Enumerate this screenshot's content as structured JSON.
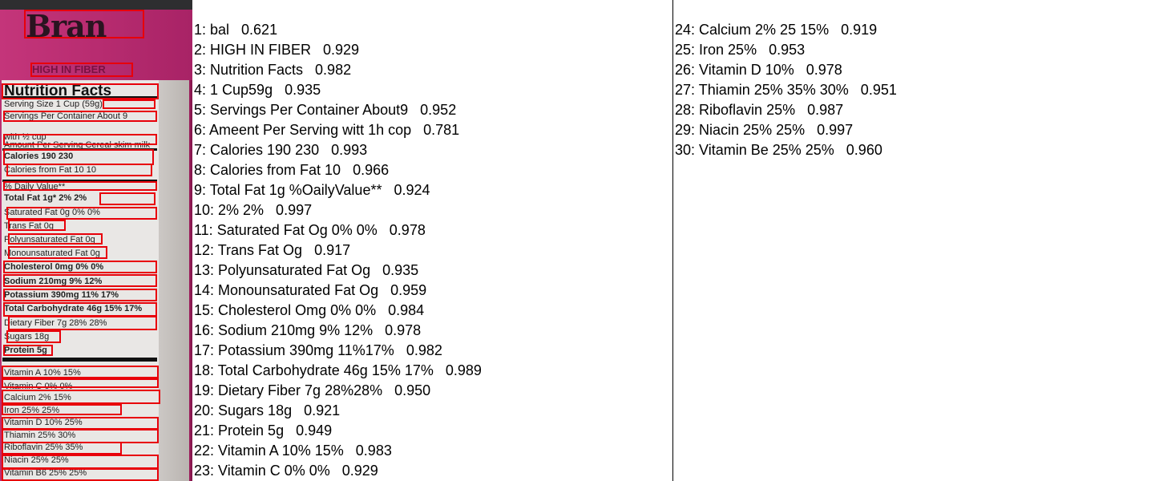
{
  "results_left": [
    "1: bal   0.621",
    "2: HIGH IN FIBER   0.929",
    "3: Nutrition Facts   0.982",
    "4: 1 Cup59g   0.935",
    "5: Servings Per Container About9   0.952",
    "6: Ameent Per Serving witt 1h cop   0.781",
    "7: Calories 190 230   0.993",
    "8: Calories from Fat 10   0.966",
    "9: Total Fat 1g %OailyValue**   0.924",
    "10: 2% 2%   0.997",
    "11: Saturated Fat Og 0% 0%   0.978",
    "12: Trans Fat Og   0.917",
    "13: Polyunsaturated Fat Og   0.935",
    "14: Monounsaturated Fat Og   0.959",
    "15: Cholesterol Omg 0% 0%   0.984",
    "16: Sodium 210mg 9% 12%   0.978",
    "17: Potassium 390mg 11%17%   0.982",
    "18: Total Carbohydrate 46g 15% 17%   0.989",
    "19: Dietary Fiber 7g 28%28%   0.950",
    "20: Sugars 18g   0.921",
    "21: Protein 5g   0.949",
    "22: Vitamin A 10% 15%   0.983",
    "23: Vitamin C 0% 0%   0.929"
  ],
  "results_right": [
    "24: Calcium 2% 25 15%   0.919",
    "25: Iron 25%   0.953",
    "26: Vitamin D 10%   0.978",
    "27: Thiamin 25% 35% 30%   0.951",
    "28: Riboflavin 25%   0.987",
    "29: Niacin 25% 25%   0.997",
    "30: Vitamin Be 25% 25%   0.960"
  ],
  "label_photo": {
    "brand": "Bran",
    "tagline": "HIGH IN FIBER",
    "panel_title": "Nutrition Facts",
    "rows": [
      "Serving Size          1 Cup (59g)",
      "Servings Per Container    About 9",
      "                           with ½ cup",
      "Amount Per Serving   Cereal  skim milk",
      "Calories              190     230",
      "  Calories from Fat    10      10",
      "                     % Daily Value**",
      "Total Fat 1g*          2%      2%",
      "  Saturated Fat 0g     0%      0%",
      "  Trans Fat 0g",
      "  Polyunsaturated Fat 0g",
      "  Monounsaturated Fat 0g",
      "Cholesterol 0mg        0%      0%",
      "Sodium 210mg           9%     12%",
      "Potassium 390mg       11%     17%",
      "Total Carbohydrate 46g 15%    17%",
      "  Dietary Fiber 7g    28%     28%",
      "  Sugars 18g",
      "Protein 5g",
      "",
      "Vitamin A             10%     15%",
      "Vitamin C              0%      0%",
      "Calcium                2%     15%",
      "Iron                  25%     25%",
      "Vitamin D             10%     25%",
      "Thiamin               25%     30%",
      "Riboflavin            25%     35%",
      "Niacin                25%     25%",
      "Vitamin B6            25%     25%"
    ]
  },
  "colors": {
    "detection_box": "#e8000a",
    "label_pink": "#c4357a"
  }
}
